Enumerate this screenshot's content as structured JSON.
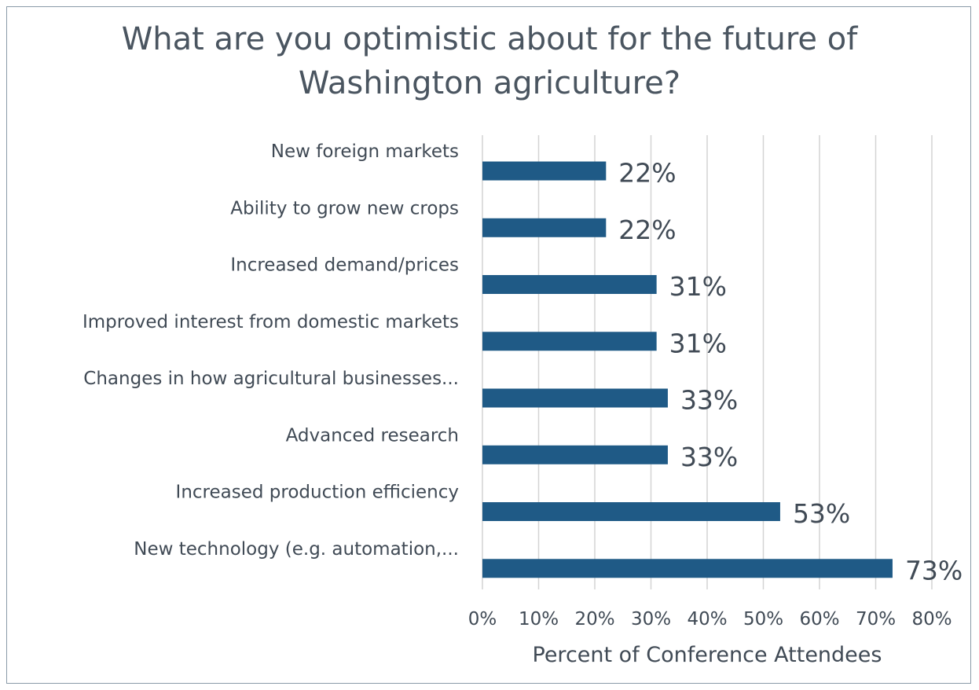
{
  "chart_data": {
    "type": "bar",
    "orientation": "horizontal",
    "title_lines": [
      "What are you optimistic about for the future of",
      "Washington agriculture?"
    ],
    "categories": [
      "New foreign markets",
      "Ability to grow new crops",
      "Increased demand/prices",
      "Improved interest from domestic markets",
      "Changes in how agricultural businesses...",
      "Advanced research",
      "Increased production efficiency",
      "New technology (e.g. automation,..."
    ],
    "values": [
      22,
      22,
      31,
      31,
      33,
      33,
      53,
      73
    ],
    "value_labels": [
      "22%",
      "22%",
      "31%",
      "31%",
      "33%",
      "33%",
      "53%",
      "73%"
    ],
    "xlabel": "Percent of Conference Attendees",
    "xlim": [
      0,
      80
    ],
    "xticks": [
      "0%",
      "10%",
      "20%",
      "30%",
      "40%",
      "50%",
      "60%",
      "70%",
      "80%"
    ],
    "grid": true,
    "bar_color": "#1f5a86"
  }
}
